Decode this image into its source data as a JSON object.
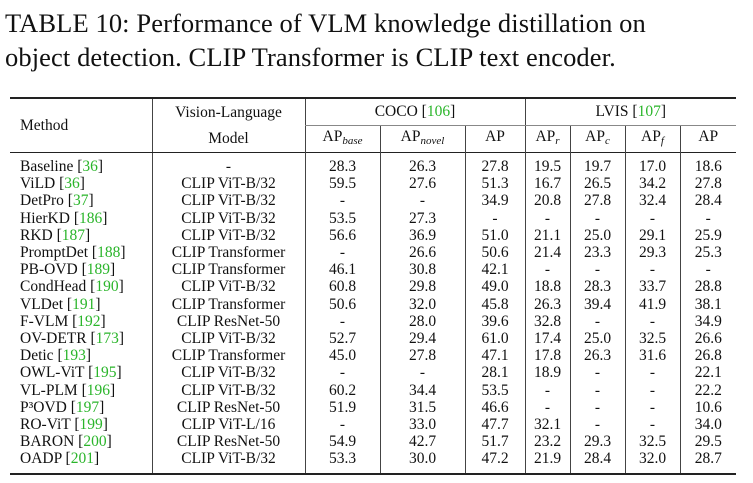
{
  "caption": {
    "line1": "TABLE 10: Performance of VLM knowledge distillation on",
    "line2": "object detection. CLIP Transformer is CLIP text encoder."
  },
  "header": {
    "method": "Method",
    "vl_top": "Vision-Language",
    "vl_bottom": "Model",
    "coco": "COCO",
    "coco_ref": "106",
    "lvis": "LVIS",
    "lvis_ref": "107",
    "cols": [
      {
        "base": "AP",
        "sub": "base"
      },
      {
        "base": "AP",
        "sub": "novel"
      },
      {
        "base": "AP",
        "sub": ""
      },
      {
        "base": "AP",
        "sub": "r"
      },
      {
        "base": "AP",
        "sub": "c"
      },
      {
        "base": "AP",
        "sub": "f"
      },
      {
        "base": "AP",
        "sub": ""
      }
    ]
  },
  "ref_color": "#2ab52a",
  "rows": [
    {
      "method": "Baseline",
      "ref": "36",
      "model": "-",
      "values": [
        "28.3",
        "26.3",
        "27.8",
        "19.5",
        "19.7",
        "17.0",
        "18.6"
      ]
    },
    {
      "method": "ViLD",
      "ref": "36",
      "model": "CLIP ViT-B/32",
      "values": [
        "59.5",
        "27.6",
        "51.3",
        "16.7",
        "26.5",
        "34.2",
        "27.8"
      ]
    },
    {
      "method": "DetPro",
      "ref": "37",
      "model": "CLIP ViT-B/32",
      "values": [
        "-",
        "-",
        "34.9",
        "20.8",
        "27.8",
        "32.4",
        "28.4"
      ]
    },
    {
      "method": "HierKD",
      "ref": "186",
      "model": "CLIP ViT-B/32",
      "values": [
        "53.5",
        "27.3",
        "-",
        "-",
        "-",
        "-",
        "-"
      ]
    },
    {
      "method": "RKD",
      "ref": "187",
      "model": "CLIP ViT-B/32",
      "values": [
        "56.6",
        "36.9",
        "51.0",
        "21.1",
        "25.0",
        "29.1",
        "25.9"
      ]
    },
    {
      "method": "PromptDet",
      "ref": "188",
      "model": "CLIP Transformer",
      "values": [
        "-",
        "26.6",
        "50.6",
        "21.4",
        "23.3",
        "29.3",
        "25.3"
      ]
    },
    {
      "method": "PB-OVD",
      "ref": "189",
      "model": "CLIP Transformer",
      "values": [
        "46.1",
        "30.8",
        "42.1",
        "-",
        "-",
        "-",
        "-"
      ]
    },
    {
      "method": "CondHead",
      "ref": "190",
      "model": "CLIP ViT-B/32",
      "values": [
        "60.8",
        "29.8",
        "49.0",
        "18.8",
        "28.3",
        "33.7",
        "28.8"
      ]
    },
    {
      "method": "VLDet",
      "ref": "191",
      "model": "CLIP Transformer",
      "values": [
        "50.6",
        "32.0",
        "45.8",
        "26.3",
        "39.4",
        "41.9",
        "38.1"
      ]
    },
    {
      "method": "F-VLM",
      "ref": "192",
      "model": "CLIP ResNet-50",
      "values": [
        "-",
        "28.0",
        "39.6",
        "32.8",
        "-",
        "-",
        "34.9"
      ]
    },
    {
      "method": "OV-DETR",
      "ref": "173",
      "model": "CLIP ViT-B/32",
      "values": [
        "52.7",
        "29.4",
        "61.0",
        "17.4",
        "25.0",
        "32.5",
        "26.6"
      ]
    },
    {
      "method": "Detic",
      "ref": "193",
      "model": "CLIP Transformer",
      "values": [
        "45.0",
        "27.8",
        "47.1",
        "17.8",
        "26.3",
        "31.6",
        "26.8"
      ]
    },
    {
      "method": "OWL-ViT",
      "ref": "195",
      "model": "CLIP ViT-B/32",
      "values": [
        "-",
        "-",
        "28.1",
        "18.9",
        "-",
        "-",
        "22.1"
      ]
    },
    {
      "method": "VL-PLM",
      "ref": "196",
      "model": "CLIP ViT-B/32",
      "values": [
        "60.2",
        "34.4",
        "53.5",
        "-",
        "-",
        "-",
        "22.2"
      ]
    },
    {
      "method": "P³OVD",
      "ref": "197",
      "model": "CLIP ResNet-50",
      "values": [
        "51.9",
        "31.5",
        "46.6",
        "-",
        "-",
        "-",
        "10.6"
      ]
    },
    {
      "method": "RO-ViT",
      "ref": "199",
      "model": "CLIP ViT-L/16",
      "values": [
        "-",
        "33.0",
        "47.7",
        "32.1",
        "-",
        "-",
        "34.0"
      ]
    },
    {
      "method": "BARON",
      "ref": "200",
      "model": "CLIP ResNet-50",
      "values": [
        "54.9",
        "42.7",
        "51.7",
        "23.2",
        "29.3",
        "32.5",
        "29.5"
      ]
    },
    {
      "method": "OADP",
      "ref": "201",
      "model": "CLIP ViT-B/32",
      "values": [
        "53.3",
        "30.0",
        "47.2",
        "21.9",
        "28.4",
        "32.0",
        "28.7"
      ]
    }
  ]
}
